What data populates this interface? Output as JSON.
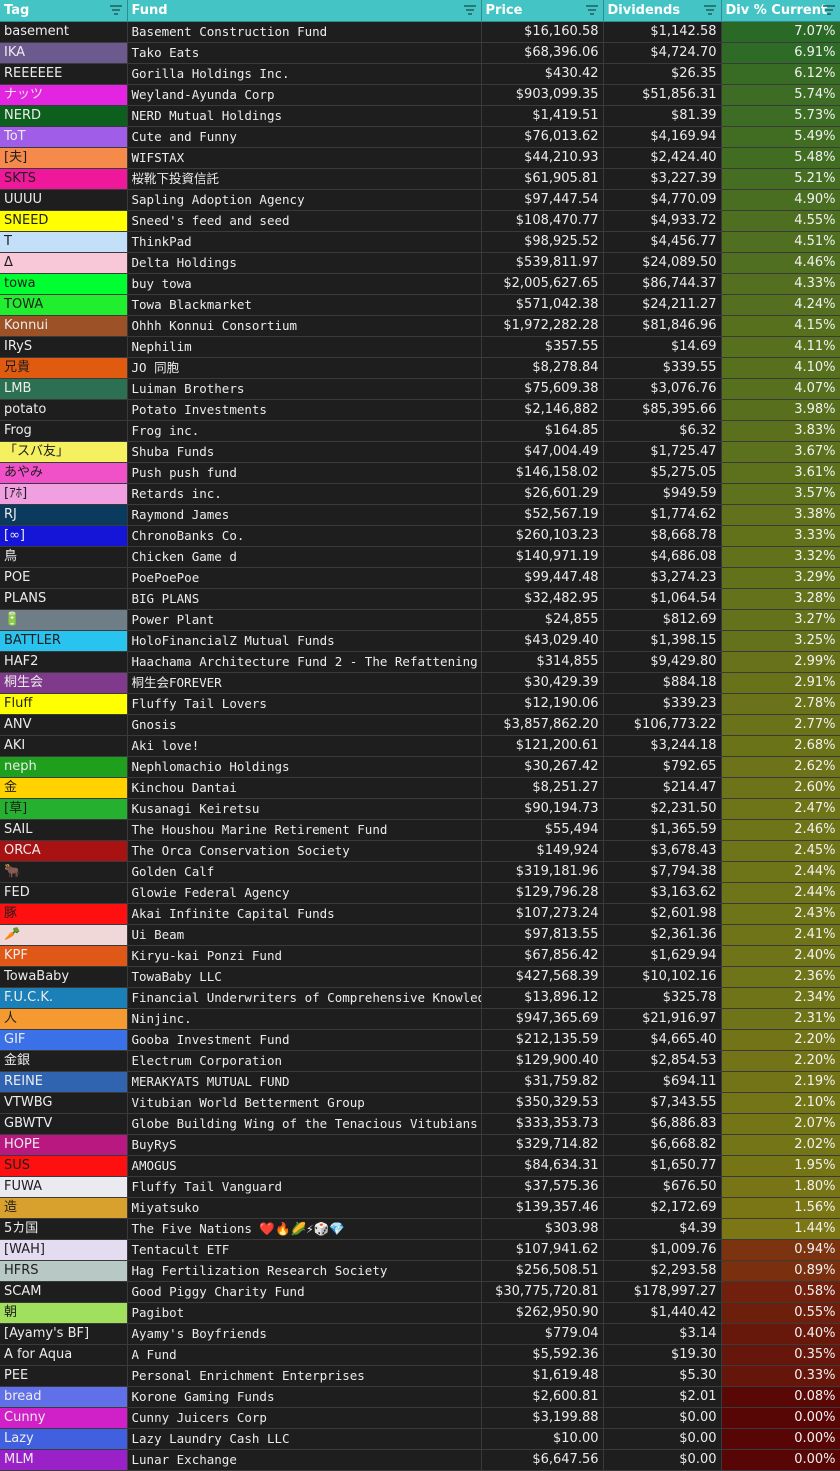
{
  "headers": {
    "tag": "Tag",
    "fund": "Fund",
    "price": "Price",
    "dividends": "Dividends",
    "div_pct": "Div % Current"
  },
  "rows": [
    {
      "tag": "basement",
      "tag_bg": "#1e1e1e",
      "tag_fg": "#ececec",
      "fund": "Basement Construction Fund",
      "price": "$16,160.58",
      "div": "$1,142.58",
      "pct": "7.07%",
      "pct_bg": "#2b6a26"
    },
    {
      "tag": "IKA",
      "tag_bg": "#6c5a8e",
      "tag_fg": "#ececec",
      "fund": "Tako Eats",
      "price": "$68,396.06",
      "div": "$4,724.70",
      "pct": "6.91%",
      "pct_bg": "#2d6b26"
    },
    {
      "tag": "REEEEEE",
      "tag_bg": "#1e1e1e",
      "tag_fg": "#ececec",
      "fund": "Gorilla Holdings Inc.",
      "price": "$430.42",
      "div": "$26.35",
      "pct": "6.12%",
      "pct_bg": "#386c25"
    },
    {
      "tag": "ナッツ",
      "tag_bg": "#e324e0",
      "tag_fg": "#ececec",
      "fund": "Weyland-Ayunda Corp",
      "price": "$903,099.35",
      "div": "$51,856.31",
      "pct": "5.74%",
      "pct_bg": "#3d6d24"
    },
    {
      "tag": "NERD",
      "tag_bg": "#0c5f1c",
      "tag_fg": "#ececec",
      "fund": "NERD Mutual Holdings",
      "price": "$1,419.51",
      "div": "$81.39",
      "pct": "5.73%",
      "pct_bg": "#3d6d24"
    },
    {
      "tag": "ToT",
      "tag_bg": "#a05ee8",
      "tag_fg": "#ececec",
      "fund": "Cute and Funny",
      "price": "$76,013.62",
      "div": "$4,169.94",
      "pct": "5.49%",
      "pct_bg": "#416d23"
    },
    {
      "tag": "[夫]",
      "tag_bg": "#f58a4a",
      "tag_fg": "#1e1e1e",
      "fund": "WIFSTAX",
      "price": "$44,210.93",
      "div": "$2,424.40",
      "pct": "5.48%",
      "pct_bg": "#416d23"
    },
    {
      "tag": "SKTS",
      "tag_bg": "#f0189a",
      "tag_fg": "#1e1e1e",
      "fund": "桜靴下投資信託",
      "price": "$61,905.81",
      "div": "$3,227.39",
      "pct": "5.21%",
      "pct_bg": "#456e22"
    },
    {
      "tag": "UUUU",
      "tag_bg": "#1e1e1e",
      "tag_fg": "#ececec",
      "fund": "Sapling Adoption Agency",
      "price": "$97,447.54",
      "div": "$4,770.09",
      "pct": "4.90%",
      "pct_bg": "#4a6e21"
    },
    {
      "tag": "SNEED",
      "tag_bg": "#ffff00",
      "tag_fg": "#1e1e1e",
      "fund": "Sneed's feed and seed",
      "price": "$108,470.77",
      "div": "$4,933.72",
      "pct": "4.55%",
      "pct_bg": "#4f6f20"
    },
    {
      "tag": "T",
      "tag_bg": "#c3e0f8",
      "tag_fg": "#1e1e1e",
      "fund": "ThinkPad",
      "price": "$98,925.52",
      "div": "$4,456.77",
      "pct": "4.51%",
      "pct_bg": "#506f20"
    },
    {
      "tag": "Δ",
      "tag_bg": "#f9c8d8",
      "tag_fg": "#1e1e1e",
      "fund": "Delta Holdings",
      "price": "$539,811.97",
      "div": "$24,089.50",
      "pct": "4.46%",
      "pct_bg": "#516f20"
    },
    {
      "tag": "towa",
      "tag_bg": "#00ff30",
      "tag_fg": "#1e1e1e",
      "fund": "buy towa",
      "price": "$2,005,627.65",
      "div": "$86,744.37",
      "pct": "4.33%",
      "pct_bg": "#536f1f"
    },
    {
      "tag": "TOWA",
      "tag_bg": "#22ee30",
      "tag_fg": "#1e1e1e",
      "fund": "Towa Blackmarket",
      "price": "$571,042.38",
      "div": "$24,211.27",
      "pct": "4.24%",
      "pct_bg": "#546f1f"
    },
    {
      "tag": "Konnui",
      "tag_bg": "#9c5226",
      "tag_fg": "#ececec",
      "fund": "Ohhh Konnui Consortium",
      "price": "$1,972,282.28",
      "div": "$81,846.96",
      "pct": "4.15%",
      "pct_bg": "#56701e"
    },
    {
      "tag": "IRyS",
      "tag_bg": "#1e1e1e",
      "tag_fg": "#ececec",
      "fund": "Nephilim",
      "price": "$357.55",
      "div": "$14.69",
      "pct": "4.11%",
      "pct_bg": "#56701e"
    },
    {
      "tag": "兄貴",
      "tag_bg": "#e05a10",
      "tag_fg": "#1e1e1e",
      "fund": "JO 同胞",
      "price": "$8,278.84",
      "div": "$339.55",
      "pct": "4.10%",
      "pct_bg": "#56701e"
    },
    {
      "tag": "LMB",
      "tag_bg": "#2b7050",
      "tag_fg": "#ececec",
      "fund": "Luiman Brothers",
      "price": "$75,609.38",
      "div": "$3,076.76",
      "pct": "4.07%",
      "pct_bg": "#57701e"
    },
    {
      "tag": "potato",
      "tag_bg": "#1e1e1e",
      "tag_fg": "#ececec",
      "fund": "Potato Investments",
      "price": "$2,146,882",
      "div": "$85,395.66",
      "pct": "3.98%",
      "pct_bg": "#58701e"
    },
    {
      "tag": "Frog",
      "tag_bg": "#1e1e1e",
      "tag_fg": "#ececec",
      "fund": "Frog inc.",
      "price": "$164.85",
      "div": "$6.32",
      "pct": "3.83%",
      "pct_bg": "#5a701d"
    },
    {
      "tag": "「スバ友」",
      "tag_bg": "#f5f060",
      "tag_fg": "#1e1e1e",
      "fund": "Shuba Funds",
      "price": "$47,004.49",
      "div": "$1,725.47",
      "pct": "3.67%",
      "pct_bg": "#5c711d"
    },
    {
      "tag": "あやみ",
      "tag_bg": "#f050c8",
      "tag_fg": "#1e1e1e",
      "fund": "Push push fund",
      "price": "$146,158.02",
      "div": "$5,275.05",
      "pct": "3.61%",
      "pct_bg": "#5d711d"
    },
    {
      "tag": "[ｱﾎ]",
      "tag_bg": "#f0a0e0",
      "tag_fg": "#1e1e1e",
      "fund": "Retards inc.",
      "price": "$26,601.29",
      "div": "$949.59",
      "pct": "3.57%",
      "pct_bg": "#5e711c"
    },
    {
      "tag": "RJ",
      "tag_bg": "#0a3b5e",
      "tag_fg": "#ececec",
      "fund": "Raymond James",
      "price": "$52,567.19",
      "div": "$1,774.62",
      "pct": "3.38%",
      "pct_bg": "#61711c"
    },
    {
      "tag": "[∞]",
      "tag_bg": "#1515d8",
      "tag_fg": "#ececec",
      "fund": "ChronoBanks Co.",
      "price": "$260,103.23",
      "div": "$8,668.78",
      "pct": "3.33%",
      "pct_bg": "#62721b"
    },
    {
      "tag": "鳥",
      "tag_bg": "#1e1e1e",
      "tag_fg": "#ececec",
      "fund": "Chicken Game d",
      "price": "$140,971.19",
      "div": "$4,686.08",
      "pct": "3.32%",
      "pct_bg": "#62721b"
    },
    {
      "tag": "POE",
      "tag_bg": "#1e1e1e",
      "tag_fg": "#ececec",
      "fund": "PoePoePoe",
      "price": "$99,447.48",
      "div": "$3,274.23",
      "pct": "3.29%",
      "pct_bg": "#62721b"
    },
    {
      "tag": "PLANS",
      "tag_bg": "#1e1e1e",
      "tag_fg": "#ececec",
      "fund": "BIG PLANS",
      "price": "$32,482.95",
      "div": "$1,064.54",
      "pct": "3.28%",
      "pct_bg": "#63721b"
    },
    {
      "tag": "🔋",
      "tag_bg": "#6f7d86",
      "tag_fg": "#ececec",
      "fund": "Power Plant",
      "price": "$24,855",
      "div": "$812.69",
      "pct": "3.27%",
      "pct_bg": "#63721b"
    },
    {
      "tag": "BATTLER",
      "tag_bg": "#29c3f0",
      "tag_fg": "#1e1e1e",
      "fund": "HoloFinancialZ Mutual Funds",
      "price": "$43,029.40",
      "div": "$1,398.15",
      "pct": "3.25%",
      "pct_bg": "#63721b"
    },
    {
      "tag": "HAF2",
      "tag_bg": "#1e1e1e",
      "tag_fg": "#ececec",
      "fund": "Haachama Architecture Fund 2 - The Refattening",
      "price": "$314,855",
      "div": "$9,429.80",
      "pct": "2.99%",
      "pct_bg": "#67721a"
    },
    {
      "tag": "桐生会",
      "tag_bg": "#803a8c",
      "tag_fg": "#ececec",
      "fund": "桐生会FOREVER",
      "price": "$30,429.39",
      "div": "$884.18",
      "pct": "2.91%",
      "pct_bg": "#687319"
    },
    {
      "tag": "Fluff",
      "tag_bg": "#ffff00",
      "tag_fg": "#1e1e1e",
      "fund": "Fluffy Tail Lovers",
      "price": "$12,190.06",
      "div": "$339.23",
      "pct": "2.78%",
      "pct_bg": "#6a7319"
    },
    {
      "tag": "ANV",
      "tag_bg": "#1e1e1e",
      "tag_fg": "#ececec",
      "fund": "Gnosis",
      "price": "$3,857,862.20",
      "div": "$106,773.22",
      "pct": "2.77%",
      "pct_bg": "#6a7319"
    },
    {
      "tag": "AKI",
      "tag_bg": "#1e1e1e",
      "tag_fg": "#ececec",
      "fund": "Aki love!",
      "price": "$121,200.61",
      "div": "$3,244.18",
      "pct": "2.68%",
      "pct_bg": "#6b7318"
    },
    {
      "tag": "neph",
      "tag_bg": "#1fa01c",
      "tag_fg": "#ececec",
      "fund": "Nephlomachio Holdings",
      "price": "$30,267.42",
      "div": "$792.65",
      "pct": "2.62%",
      "pct_bg": "#6c7318"
    },
    {
      "tag": "金",
      "tag_bg": "#ffd200",
      "tag_fg": "#1e1e1e",
      "fund": "Kinchou Dantai",
      "price": "$8,251.27",
      "div": "$214.47",
      "pct": "2.60%",
      "pct_bg": "#6c7318"
    },
    {
      "tag": "[草]",
      "tag_bg": "#26b030",
      "tag_fg": "#1e1e1e",
      "fund": "Kusanagi Keiretsu",
      "price": "$90,194.73",
      "div": "$2,231.50",
      "pct": "2.47%",
      "pct_bg": "#6e7418"
    },
    {
      "tag": "SAIL",
      "tag_bg": "#1e1e1e",
      "tag_fg": "#ececec",
      "fund": "The Houshou Marine Retirement Fund",
      "price": "$55,494",
      "div": "$1,365.59",
      "pct": "2.46%",
      "pct_bg": "#6e7418"
    },
    {
      "tag": "ORCA",
      "tag_bg": "#a81212",
      "tag_fg": "#ececec",
      "fund": "The Orca Conservation Society",
      "price": "$149,924",
      "div": "$3,678.43",
      "pct": "2.45%",
      "pct_bg": "#6e7418"
    },
    {
      "tag": "🐂",
      "tag_bg": "#1e1e1e",
      "tag_fg": "#ececec",
      "fund": "Golden Calf",
      "price": "$319,181.96",
      "div": "$7,794.38",
      "pct": "2.44%",
      "pct_bg": "#6e7418"
    },
    {
      "tag": "FED",
      "tag_bg": "#1e1e1e",
      "tag_fg": "#ececec",
      "fund": "Glowie Federal Agency",
      "price": "$129,796.28",
      "div": "$3,163.62",
      "pct": "2.44%",
      "pct_bg": "#6e7418"
    },
    {
      "tag": "豚",
      "tag_bg": "#ff1010",
      "tag_fg": "#1e1e1e",
      "fund": "Akai Infinite Capital Funds",
      "price": "$107,273.24",
      "div": "$2,601.98",
      "pct": "2.43%",
      "pct_bg": "#6e7418"
    },
    {
      "tag": "🥕",
      "tag_bg": "#f0d8d8",
      "tag_fg": "#1e1e1e",
      "fund": "Ui Beam",
      "price": "$97,813.55",
      "div": "$2,361.36",
      "pct": "2.41%",
      "pct_bg": "#6f7418"
    },
    {
      "tag": "KPF",
      "tag_bg": "#e05818",
      "tag_fg": "#ececec",
      "fund": "Kiryu-kai Ponzi Fund",
      "price": "$67,856.42",
      "div": "$1,629.94",
      "pct": "2.40%",
      "pct_bg": "#6f7418"
    },
    {
      "tag": "TowaBaby",
      "tag_bg": "#1e1e1e",
      "tag_fg": "#ececec",
      "fund": "TowaBaby LLC",
      "price": "$427,568.39",
      "div": "$10,102.16",
      "pct": "2.36%",
      "pct_bg": "#6f7418"
    },
    {
      "tag": "F.U.C.K.",
      "tag_bg": "#1c80b8",
      "tag_fg": "#ececec",
      "fund": "Financial Underwriters of Comprehensive Knowledge",
      "price": "$13,896.12",
      "div": "$325.78",
      "pct": "2.34%",
      "pct_bg": "#707418"
    },
    {
      "tag": "人",
      "tag_bg": "#f49a30",
      "tag_fg": "#1e1e1e",
      "fund": "Ninjinc.",
      "price": "$947,365.69",
      "div": "$21,916.97",
      "pct": "2.31%",
      "pct_bg": "#707418"
    },
    {
      "tag": "GIF",
      "tag_bg": "#3a70e8",
      "tag_fg": "#ececec",
      "fund": "Gooba Investment Fund",
      "price": "$212,135.59",
      "div": "$4,665.40",
      "pct": "2.20%",
      "pct_bg": "#727417"
    },
    {
      "tag": "金銀",
      "tag_bg": "#1e1e1e",
      "tag_fg": "#ececec",
      "fund": "Electrum Corporation",
      "price": "$129,900.40",
      "div": "$2,854.53",
      "pct": "2.20%",
      "pct_bg": "#727417"
    },
    {
      "tag": "REINE",
      "tag_bg": "#3064b0",
      "tag_fg": "#ececec",
      "fund": "MERAKYATS MUTUAL FUND",
      "price": "$31,759.82",
      "div": "$694.11",
      "pct": "2.19%",
      "pct_bg": "#727417"
    },
    {
      "tag": "VTWBG",
      "tag_bg": "#1e1e1e",
      "tag_fg": "#ececec",
      "fund": "Vitubian World Betterment Group",
      "price": "$350,329.53",
      "div": "$7,343.55",
      "pct": "2.10%",
      "pct_bg": "#737517"
    },
    {
      "tag": "GBWTV",
      "tag_bg": "#1e1e1e",
      "tag_fg": "#ececec",
      "fund": "Globe Building Wing of the Tenacious Vitubians",
      "price": "$333,353.73",
      "div": "$6,886.83",
      "pct": "2.07%",
      "pct_bg": "#737517"
    },
    {
      "tag": "HOPE",
      "tag_bg": "#b81880",
      "tag_fg": "#ececec",
      "fund": "BuyRyS",
      "price": "$329,714.82",
      "div": "$6,668.82",
      "pct": "2.02%",
      "pct_bg": "#747517"
    },
    {
      "tag": "SUS",
      "tag_bg": "#ff1010",
      "tag_fg": "#1e1e1e",
      "fund": "AMOGUS",
      "price": "$84,634.31",
      "div": "$1,650.77",
      "pct": "1.95%",
      "pct_bg": "#757516"
    },
    {
      "tag": "FUWA",
      "tag_bg": "#eaeaf0",
      "tag_fg": "#1e1e1e",
      "fund": "Fluffy Tail Vanguard",
      "price": "$37,575.36",
      "div": "$676.50",
      "pct": "1.80%",
      "pct_bg": "#777516"
    },
    {
      "tag": "造",
      "tag_bg": "#d8a02c",
      "tag_fg": "#1e1e1e",
      "fund": "Miyatsuko",
      "price": "$139,357.46",
      "div": "$2,172.69",
      "pct": "1.56%",
      "pct_bg": "#7a7616"
    },
    {
      "tag": "5カ国",
      "tag_bg": "#1e1e1e",
      "tag_fg": "#ececec",
      "fund": "The Five Nations ❤️🔥🌽⚡🎲💎",
      "price": "$303.98",
      "div": "$4.39",
      "pct": "1.44%",
      "pct_bg": "#7c7615"
    },
    {
      "tag": "[WAH]",
      "tag_bg": "#e4dcf0",
      "tag_fg": "#1e1e1e",
      "fund": "Tentacult ETF",
      "price": "$107,941.62",
      "div": "$1,009.76",
      "pct": "0.94%",
      "pct_bg": "#7c3410"
    },
    {
      "tag": "HFRS",
      "tag_bg": "#b8c8c4",
      "tag_fg": "#1e1e1e",
      "fund": "Hag Fertilization Research Society",
      "price": "$256,508.51",
      "div": "$2,293.58",
      "pct": "0.89%",
      "pct_bg": "#7a300f"
    },
    {
      "tag": "SCAM",
      "tag_bg": "#1e1e1e",
      "tag_fg": "#ececec",
      "fund": "Good Piggy Charity Fund",
      "price": "$30,775,720.81",
      "div": "$178,997.27",
      "pct": "0.58%",
      "pct_bg": "#70200c"
    },
    {
      "tag": "朝",
      "tag_bg": "#a0e05c",
      "tag_fg": "#1e1e1e",
      "fund": "Pagibot",
      "price": "$262,950.90",
      "div": "$1,440.42",
      "pct": "0.55%",
      "pct_bg": "#6e1f0c"
    },
    {
      "tag": "[Ayamy's BF]",
      "tag_bg": "#1e1e1e",
      "tag_fg": "#ececec",
      "fund": "Ayamy's Boyfriends",
      "price": "$779.04",
      "div": "$3.14",
      "pct": "0.40%",
      "pct_bg": "#68180a"
    },
    {
      "tag": "A for Aqua",
      "tag_bg": "#1e1e1e",
      "tag_fg": "#ececec",
      "fund": "A Fund",
      "price": "$5,592.36",
      "div": "$19.30",
      "pct": "0.35%",
      "pct_bg": "#66160a"
    },
    {
      "tag": "PEE",
      "tag_bg": "#1e1e1e",
      "tag_fg": "#ececec",
      "fund": "Personal Enrichment Enterprises",
      "price": "$1,619.48",
      "div": "$5.30",
      "pct": "0.33%",
      "pct_bg": "#651509"
    },
    {
      "tag": "bread",
      "tag_bg": "#6070e8",
      "tag_fg": "#ececec",
      "fund": "Korone Gaming Funds",
      "price": "$2,600.81",
      "div": "$2.01",
      "pct": "0.08%",
      "pct_bg": "#5a0806"
    },
    {
      "tag": "Cunny",
      "tag_bg": "#d020c8",
      "tag_fg": "#ececec",
      "fund": "Cunny Juicers Corp",
      "price": "$3,199.88",
      "div": "$0.00",
      "pct": "0.00%",
      "pct_bg": "#570505"
    },
    {
      "tag": "Lazy",
      "tag_bg": "#4060e0",
      "tag_fg": "#ececec",
      "fund": "Lazy Laundry Cash LLC",
      "price": "$10.00",
      "div": "$0.00",
      "pct": "0.00%",
      "pct_bg": "#570505"
    },
    {
      "tag": "MLM",
      "tag_bg": "#9a20c8",
      "tag_fg": "#ececec",
      "fund": "Lunar Exchange",
      "price": "$6,647.56",
      "div": "$0.00",
      "pct": "0.00%",
      "pct_bg": "#570505"
    }
  ]
}
